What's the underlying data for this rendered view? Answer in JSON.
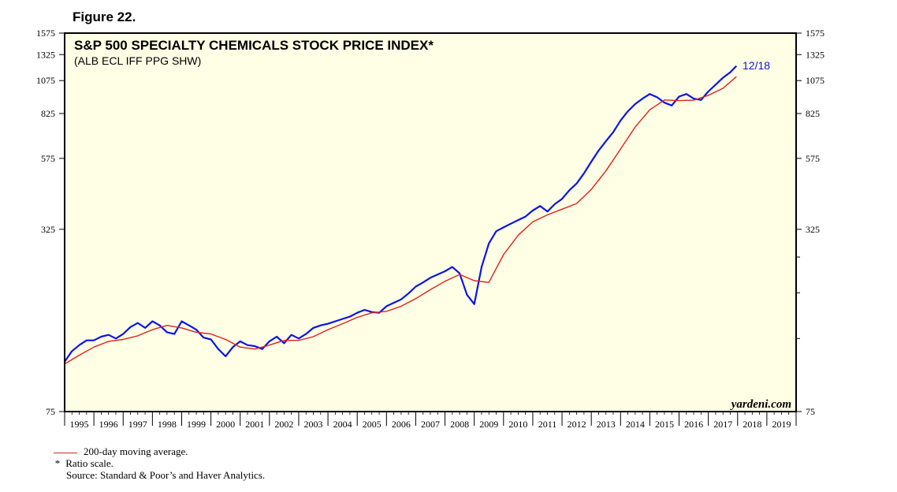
{
  "figure_label": "Figure 22.",
  "colors": {
    "plot_background": "#ffffe6",
    "price_line": "#0a14e6",
    "moving_average_line": "#e0201a",
    "axis": "#000000"
  },
  "chart_data": {
    "type": "line",
    "title": "S&P 500 SPECIALTY CHEMICALS STOCK PRICE INDEX*",
    "subtitle": "(ALB ECL IFF PPG SHW)",
    "scale": "log",
    "ylim": [
      75,
      1575
    ],
    "y_ticks": [
      75,
      325,
      575,
      825,
      1075,
      1325,
      1575
    ],
    "xlim": [
      1995,
      2020
    ],
    "x_tick_labels": [
      "1995",
      "1996",
      "1997",
      "1998",
      "1999",
      "2000",
      "2001",
      "2002",
      "2003",
      "2004",
      "2005",
      "2006",
      "2007",
      "2008",
      "2009",
      "2010",
      "2011",
      "2012",
      "2013",
      "2014",
      "2015",
      "2016",
      "2017",
      "2018",
      "2019"
    ],
    "watermark": "yardeni.com",
    "end_label": "12/18",
    "series": [
      {
        "name": "S&P 500 Specialty Chemicals Stock Price Index",
        "x": [
          1995.0,
          1995.25,
          1995.5,
          1995.75,
          1996.0,
          1996.25,
          1996.5,
          1996.75,
          1997.0,
          1997.25,
          1997.5,
          1997.75,
          1998.0,
          1998.25,
          1998.5,
          1998.75,
          1999.0,
          1999.25,
          1999.5,
          1999.75,
          2000.0,
          2000.25,
          2000.5,
          2000.75,
          2001.0,
          2001.25,
          2001.5,
          2001.75,
          2002.0,
          2002.25,
          2002.5,
          2002.75,
          2003.0,
          2003.25,
          2003.5,
          2003.75,
          2004.0,
          2004.25,
          2004.5,
          2004.75,
          2005.0,
          2005.25,
          2005.5,
          2005.75,
          2006.0,
          2006.25,
          2006.5,
          2006.75,
          2007.0,
          2007.25,
          2007.5,
          2007.75,
          2008.0,
          2008.25,
          2008.5,
          2008.75,
          2009.0,
          2009.25,
          2009.5,
          2009.75,
          2010.0,
          2010.25,
          2010.5,
          2010.75,
          2011.0,
          2011.25,
          2011.5,
          2011.75,
          2012.0,
          2012.25,
          2012.5,
          2012.75,
          2013.0,
          2013.25,
          2013.5,
          2013.75,
          2014.0,
          2014.25,
          2014.5,
          2014.75,
          2015.0,
          2015.25,
          2015.5,
          2015.75,
          2016.0,
          2016.25,
          2016.5,
          2016.75,
          2017.0,
          2017.25,
          2017.5,
          2017.75,
          2017.96
        ],
        "values": [
          112,
          122,
          128,
          133,
          133,
          137,
          139,
          135,
          140,
          148,
          153,
          147,
          155,
          150,
          142,
          140,
          155,
          150,
          145,
          136,
          134,
          124,
          117,
          126,
          132,
          128,
          127,
          124,
          132,
          137,
          130,
          139,
          135,
          140,
          147,
          150,
          152,
          155,
          158,
          161,
          166,
          170,
          167,
          166,
          175,
          180,
          185,
          194,
          205,
          212,
          220,
          226,
          232,
          240,
          228,
          192,
          178,
          240,
          290,
          320,
          330,
          340,
          350,
          360,
          378,
          392,
          375,
          398,
          415,
          445,
          470,
          510,
          560,
          612,
          660,
          710,
          780,
          840,
          890,
          930,
          965,
          940,
          900,
          880,
          945,
          965,
          930,
          920,
          985,
          1040,
          1100,
          1150,
          1210
        ]
      },
      {
        "name": "200-day moving average.",
        "x": [
          1995.0,
          1995.5,
          1996.0,
          1996.5,
          1997.0,
          1997.5,
          1998.0,
          1998.5,
          1999.0,
          1999.5,
          2000.0,
          2000.5,
          2001.0,
          2001.5,
          2002.0,
          2002.5,
          2003.0,
          2003.5,
          2004.0,
          2004.5,
          2005.0,
          2005.5,
          2006.0,
          2006.5,
          2007.0,
          2007.5,
          2008.0,
          2008.5,
          2009.0,
          2009.5,
          2010.0,
          2010.5,
          2011.0,
          2011.5,
          2012.0,
          2012.5,
          2013.0,
          2013.5,
          2014.0,
          2014.5,
          2015.0,
          2015.5,
          2016.0,
          2016.5,
          2017.0,
          2017.5,
          2017.96
        ],
        "values": [
          110,
          118,
          126,
          132,
          134,
          138,
          145,
          150,
          147,
          142,
          140,
          134,
          126,
          124,
          128,
          133,
          133,
          137,
          145,
          152,
          160,
          166,
          168,
          175,
          186,
          200,
          214,
          226,
          215,
          212,
          265,
          310,
          345,
          365,
          382,
          400,
          448,
          520,
          620,
          740,
          850,
          920,
          915,
          918,
          955,
          1010,
          1110
        ]
      }
    ]
  },
  "footnotes": {
    "legend_text": "200-day moving average.",
    "asterisk": "*",
    "ratio_note": "Ratio scale.",
    "source": "Source: Standard & Poor’s and Haver Analytics."
  }
}
